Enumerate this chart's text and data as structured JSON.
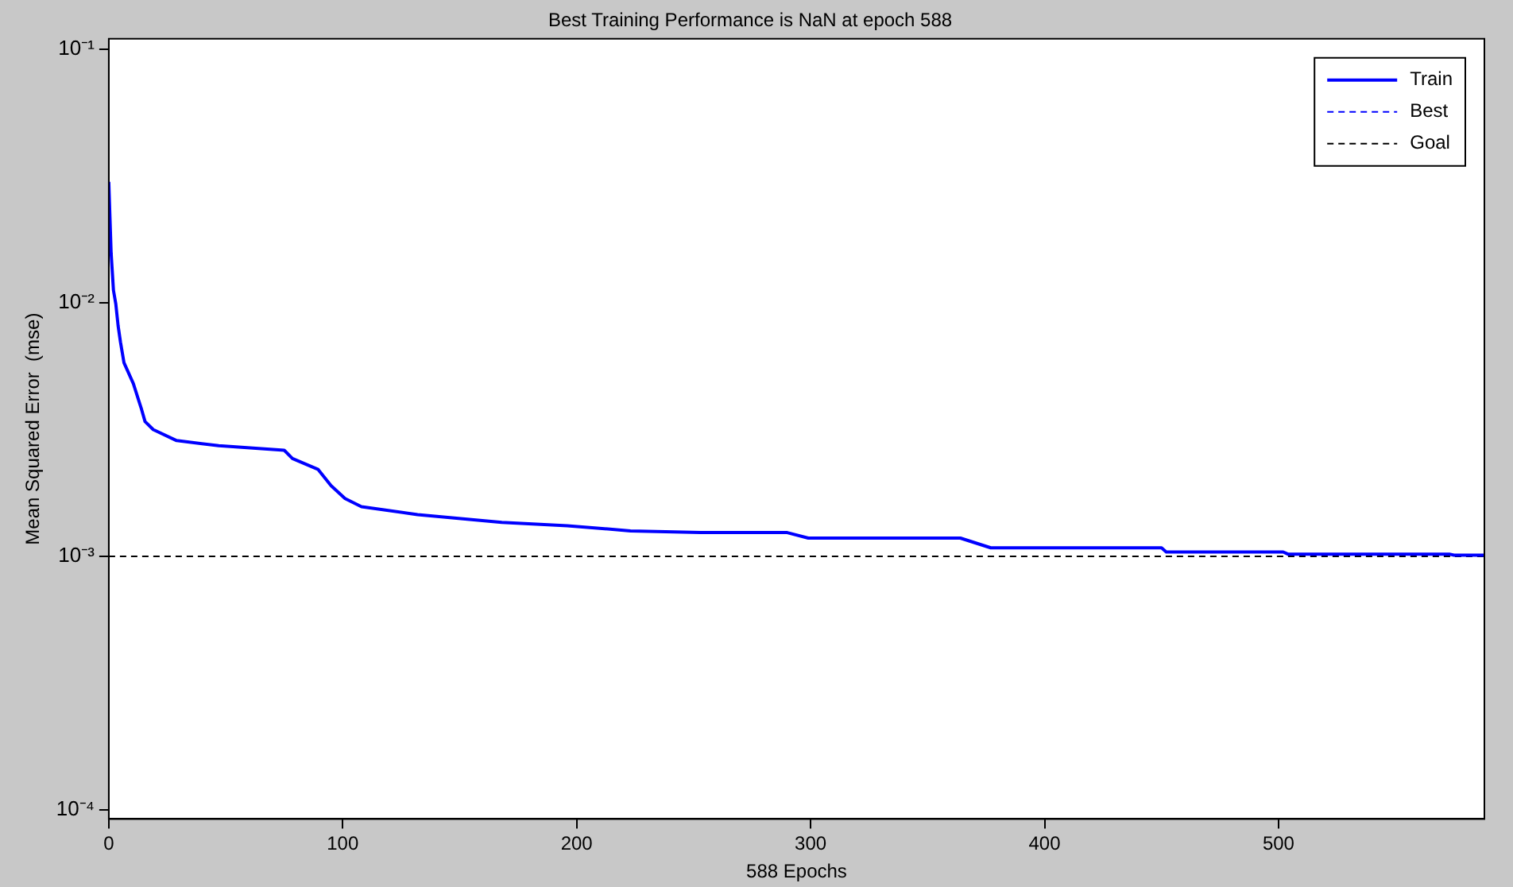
{
  "chart_data": {
    "type": "line",
    "title": "Best Training Performance is NaN at epoch 588",
    "xlabel": "588 Epochs",
    "ylabel": "Mean Squared Error  (mse)",
    "log": "y",
    "xlim": [
      0,
      588
    ],
    "xticks": [
      0,
      100,
      200,
      300,
      400,
      500
    ],
    "ylim": [
      9.2e-05,
      0.11
    ],
    "yticks": [
      {
        "value": 0.0001,
        "label": "10⁻⁴"
      },
      {
        "value": 0.001,
        "label": "10⁻³"
      },
      {
        "value": 0.01,
        "label": "10⁻²"
      },
      {
        "value": 0.1,
        "label": "10⁻¹"
      }
    ],
    "legend": "top right",
    "grid": false,
    "marker": "none",
    "series": [
      {
        "name": "Train",
        "color": "#0000ff",
        "line_style": "solid",
        "x": [
          0,
          1,
          2,
          3,
          4,
          5,
          6.5,
          10.5,
          14,
          15.5,
          19,
          29,
          47,
          75,
          78.5,
          89.5,
          95,
          101,
          108,
          132,
          168,
          196,
          223,
          253,
          290,
          299,
          364,
          377,
          450,
          452,
          502,
          504,
          573,
          575,
          588
        ],
        "values": [
          0.03,
          0.0157,
          0.0112,
          0.0099,
          0.0081,
          0.007,
          0.0058,
          0.0048,
          0.0038,
          0.0034,
          0.00316,
          0.00286,
          0.00273,
          0.00262,
          0.00243,
          0.0022,
          0.0019,
          0.00169,
          0.00157,
          0.00146,
          0.00136,
          0.00132,
          0.00126,
          0.00124,
          0.00124,
          0.00118,
          0.00118,
          0.00108,
          0.00108,
          0.00104,
          0.00104,
          0.00102,
          0.00102,
          0.00101,
          0.00101
        ]
      },
      {
        "name": "Best",
        "color": "#0000ff",
        "line_style": "dashed"
      },
      {
        "name": "Goal",
        "color": "#000000",
        "line_style": "dashed",
        "x": [
          0,
          588
        ],
        "values": [
          0.001,
          0.001
        ]
      }
    ]
  }
}
